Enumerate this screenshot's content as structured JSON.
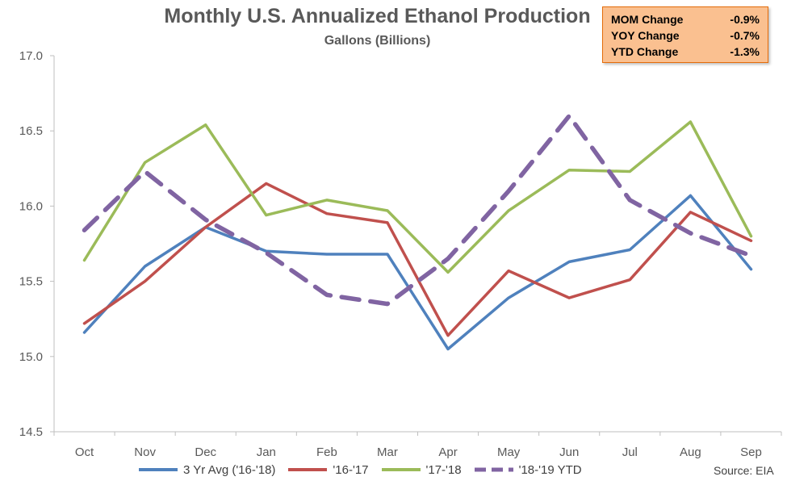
{
  "stats_box": {
    "rows": [
      {
        "label": "MOM Change",
        "value": "-0.9%"
      },
      {
        "label": "YOY Change",
        "value": "-0.7%"
      },
      {
        "label": "YTD Change",
        "value": "-1.3%"
      }
    ]
  },
  "source_note": "Source: EIA",
  "colors": {
    "axis": "#bfbfbf",
    "tick_text": "#595959",
    "stats_bg": "#fac090",
    "stats_border": "#e46c0a"
  },
  "chart_data": {
    "type": "line",
    "title": "Monthly U.S. Annualized Ethanol Production",
    "subtitle": "Gallons (Billions)",
    "xlabel": "",
    "ylabel": "",
    "categories": [
      "Oct",
      "Nov",
      "Dec",
      "Jan",
      "Feb",
      "Mar",
      "Apr",
      "May",
      "Jun",
      "Jul",
      "Aug",
      "Sep"
    ],
    "ylim": [
      14.5,
      17.0
    ],
    "yticks": [
      "14.5",
      "15.0",
      "15.5",
      "16.0",
      "16.5",
      "17.0"
    ],
    "grid": false,
    "legend_position": "bottom",
    "series": [
      {
        "name": "3 Yr Avg ('16-'18)",
        "color": "#4f81bd",
        "dash": false,
        "values": [
          15.16,
          15.6,
          15.86,
          15.7,
          15.68,
          15.68,
          15.05,
          15.39,
          15.63,
          15.71,
          16.07,
          15.58
        ]
      },
      {
        "name": "'16-'17",
        "color": "#c0504d",
        "dash": false,
        "values": [
          15.22,
          15.5,
          15.86,
          16.15,
          15.95,
          15.89,
          15.14,
          15.57,
          15.39,
          15.51,
          15.96,
          15.77
        ]
      },
      {
        "name": "'17-'18",
        "color": "#9bbb59",
        "dash": false,
        "values": [
          15.64,
          16.29,
          16.54,
          15.94,
          16.04,
          15.97,
          15.56,
          15.97,
          16.24,
          16.23,
          16.56,
          15.8
        ]
      },
      {
        "name": "'18-'19 YTD",
        "color": "#8064a2",
        "dash": true,
        "values": [
          15.84,
          16.23,
          15.91,
          15.69,
          15.41,
          15.35,
          15.65,
          16.1,
          16.6,
          16.04,
          15.82,
          15.67
        ]
      }
    ]
  }
}
